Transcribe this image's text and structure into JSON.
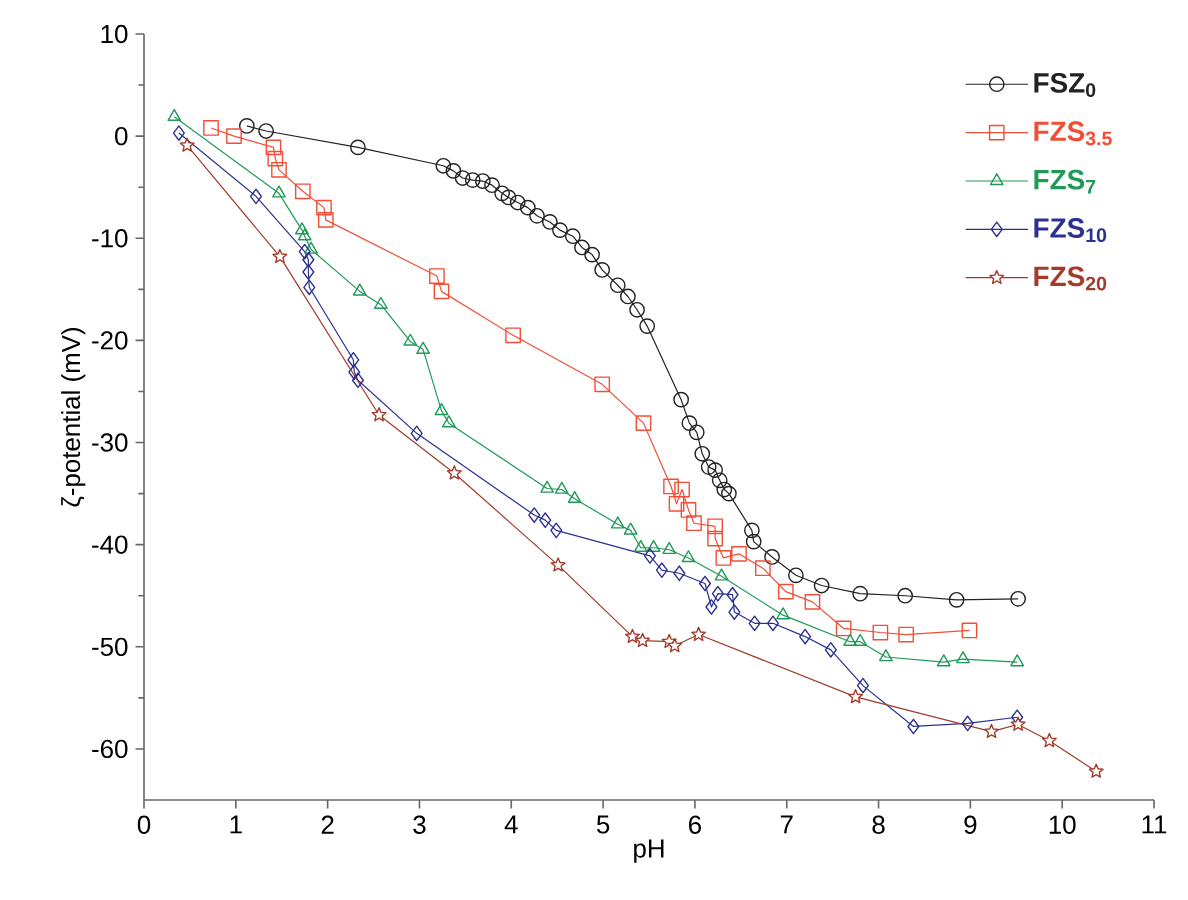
{
  "chart_data": {
    "type": "line",
    "xlabel": "pH",
    "ylabel": "ζ-potential (mV)",
    "xlim": [
      0,
      11
    ],
    "ylim": [
      -65,
      10
    ],
    "xticks": [
      0,
      1,
      2,
      3,
      4,
      5,
      6,
      7,
      8,
      9,
      10,
      11
    ],
    "yticks": [
      -60,
      -50,
      -40,
      -30,
      -20,
      -10,
      0,
      10
    ],
    "grid": false,
    "legend": "top right",
    "series": [
      {
        "name": "FSZ$_{0}$",
        "color": "#222222",
        "marker": "circle",
        "x": [
          1.12,
          1.33,
          2.33,
          3.26,
          3.37,
          3.47,
          3.58,
          3.69,
          3.79,
          3.9,
          3.97,
          4.07,
          4.18,
          4.28,
          4.42,
          4.53,
          4.67,
          4.77,
          4.88,
          4.99,
          5.16,
          5.27,
          5.37,
          5.48,
          5.85,
          5.94,
          6.02,
          6.08,
          6.15,
          6.22,
          6.27,
          6.32,
          6.37,
          6.62,
          6.64,
          6.84,
          7.1,
          7.38,
          7.8,
          8.29,
          8.85,
          9.52
        ],
        "values": [
          1.0,
          0.5,
          -1.1,
          -2.9,
          -3.4,
          -4.1,
          -4.3,
          -4.4,
          -4.8,
          -5.6,
          -6.0,
          -6.5,
          -7.0,
          -7.8,
          -8.4,
          -9.2,
          -9.8,
          -10.9,
          -11.6,
          -13.1,
          -14.6,
          -15.7,
          -17.0,
          -18.6,
          -25.8,
          -28.1,
          -29.0,
          -31.1,
          -32.4,
          -32.7,
          -33.7,
          -34.6,
          -35.0,
          -38.6,
          -39.7,
          -41.2,
          -43.0,
          -44.0,
          -44.8,
          -45.0,
          -45.4,
          -45.3
        ]
      },
      {
        "name": "FZS$_{3.5}$",
        "color": "#f04e37",
        "marker": "square",
        "x": [
          0.73,
          0.98,
          1.41,
          1.43,
          1.47,
          1.73,
          1.96,
          1.98,
          3.19,
          3.24,
          4.02,
          4.99,
          5.44,
          5.74,
          5.8,
          5.86,
          5.93,
          5.99,
          6.22,
          6.22,
          6.31,
          6.48,
          6.74,
          6.99,
          7.28,
          7.62,
          8.02,
          8.3,
          8.99
        ],
        "values": [
          0.8,
          0.0,
          -1.1,
          -2.2,
          -3.3,
          -5.4,
          -7.0,
          -8.2,
          -13.7,
          -15.2,
          -19.5,
          -24.3,
          -28.1,
          -34.3,
          -36.0,
          -34.6,
          -36.6,
          -37.9,
          -38.2,
          -39.4,
          -41.3,
          -40.9,
          -42.3,
          -44.6,
          -45.6,
          -48.2,
          -48.6,
          -48.8,
          -48.4
        ]
      },
      {
        "name": "FZS$_{7}$",
        "color": "#1f9a57",
        "marker": "triangle",
        "x": [
          0.33,
          1.47,
          1.72,
          1.75,
          1.82,
          2.35,
          2.58,
          2.9,
          3.04,
          3.24,
          3.32,
          4.39,
          4.55,
          4.69,
          5.16,
          5.3,
          5.41,
          5.55,
          5.72,
          5.93,
          6.29,
          6.96,
          7.69,
          7.8,
          8.08,
          8.71,
          8.92,
          9.51
        ],
        "values": [
          1.9,
          -5.6,
          -9.2,
          -9.8,
          -11.1,
          -15.2,
          -16.5,
          -20.1,
          -20.9,
          -26.9,
          -28.1,
          -34.5,
          -34.6,
          -35.5,
          -38.0,
          -38.6,
          -40.3,
          -40.3,
          -40.5,
          -41.3,
          -43.1,
          -46.9,
          -49.5,
          -49.5,
          -51.0,
          -51.5,
          -51.2,
          -51.5
        ]
      },
      {
        "name": "FZS$_{10}$",
        "color": "#2b3190",
        "marker": "diamond",
        "x": [
          0.38,
          1.22,
          1.75,
          1.79,
          1.79,
          1.8,
          2.28,
          2.29,
          2.33,
          2.97,
          4.25,
          4.37,
          4.49,
          5.51,
          5.64,
          5.83,
          6.11,
          6.18,
          6.25,
          6.41,
          6.43,
          6.65,
          6.85,
          7.2,
          7.48,
          7.83,
          8.38,
          8.97,
          9.51
        ],
        "values": [
          0.3,
          -5.9,
          -11.3,
          -12.1,
          -13.3,
          -14.8,
          -21.9,
          -23.1,
          -23.9,
          -29.1,
          -37.1,
          -37.6,
          -38.6,
          -41.1,
          -42.5,
          -42.8,
          -43.8,
          -46.1,
          -44.8,
          -44.9,
          -46.6,
          -47.7,
          -47.7,
          -49.0,
          -50.3,
          -53.8,
          -57.8,
          -57.5,
          -56.9
        ]
      },
      {
        "name": "FZS$_{20}$",
        "color": "#a23b2a",
        "marker": "star",
        "x": [
          0.47,
          1.48,
          2.56,
          3.38,
          4.51,
          5.32,
          5.43,
          5.72,
          5.78,
          6.04,
          7.75,
          9.23,
          9.52,
          9.86,
          10.37
        ],
        "values": [
          -0.9,
          -11.8,
          -27.3,
          -33.0,
          -42.0,
          -49.0,
          -49.4,
          -49.5,
          -49.9,
          -48.8,
          -54.9,
          -58.3,
          -57.6,
          -59.2,
          -62.2
        ]
      }
    ]
  }
}
